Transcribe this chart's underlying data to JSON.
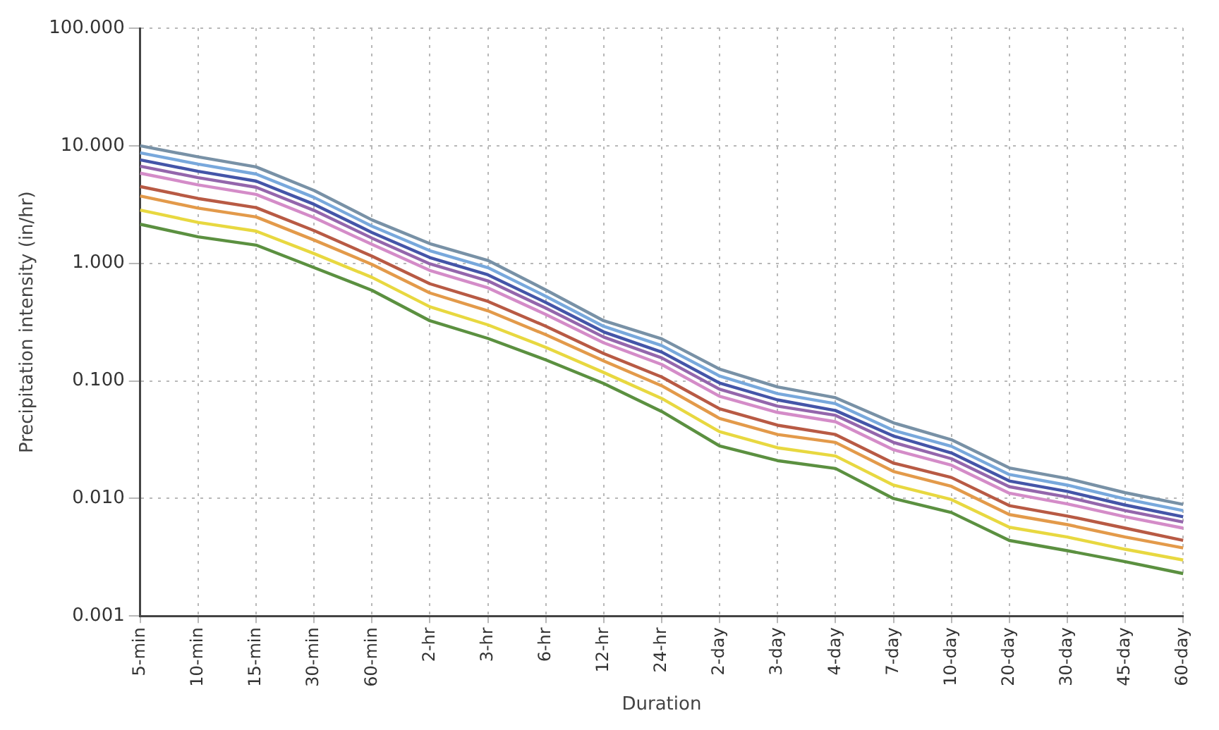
{
  "chart_data": {
    "type": "line",
    "xlabel": "Duration",
    "ylabel": "Precipitation intensity (in/hr)",
    "log": "y",
    "grid": true,
    "marker": "none",
    "line_style": "solid",
    "categories": [
      "5-min",
      "10-min",
      "15-min",
      "30-min",
      "60-min",
      "2-hr",
      "3-hr",
      "6-hr",
      "12-hr",
      "24-hr",
      "2-day",
      "3-day",
      "4-day",
      "7-day",
      "10-day",
      "20-day",
      "30-day",
      "45-day",
      "60-day"
    ],
    "ylim": [
      0.001,
      100
    ],
    "yticks": [
      {
        "value": 0.001,
        "label": "0.001"
      },
      {
        "value": 0.01,
        "label": "0.010"
      },
      {
        "value": 0.1,
        "label": "0.100"
      },
      {
        "value": 1,
        "label": "1.000"
      },
      {
        "value": 10,
        "label": "10.000"
      },
      {
        "value": 100,
        "label": "100.000"
      }
    ],
    "series": [
      {
        "color": "#5b9040",
        "values": [
          2.15,
          1.68,
          1.43,
          0.92,
          0.59,
          0.325,
          0.23,
          0.151,
          0.095,
          0.055,
          0.028,
          0.021,
          0.018,
          0.01,
          0.0076,
          0.0044,
          0.0036,
          0.0029,
          0.0023
        ]
      },
      {
        "color": "#e8d840",
        "values": [
          2.84,
          2.23,
          1.88,
          1.21,
          0.76,
          0.427,
          0.3,
          0.193,
          0.118,
          0.071,
          0.037,
          0.027,
          0.023,
          0.013,
          0.0098,
          0.0057,
          0.0047,
          0.0037,
          0.003
        ]
      },
      {
        "color": "#e39a4a",
        "values": [
          3.74,
          2.95,
          2.48,
          1.58,
          0.98,
          0.56,
          0.395,
          0.247,
          0.148,
          0.091,
          0.048,
          0.035,
          0.03,
          0.017,
          0.0127,
          0.0073,
          0.006,
          0.0047,
          0.0038
        ]
      },
      {
        "color": "#b85a44",
        "values": [
          4.5,
          3.56,
          2.98,
          1.9,
          1.15,
          0.67,
          0.475,
          0.292,
          0.171,
          0.108,
          0.058,
          0.042,
          0.035,
          0.02,
          0.0151,
          0.0087,
          0.0071,
          0.0056,
          0.0044
        ]
      },
      {
        "color": "#d48cc8",
        "values": [
          5.85,
          4.65,
          3.86,
          2.45,
          1.45,
          0.87,
          0.62,
          0.368,
          0.211,
          0.138,
          0.074,
          0.054,
          0.045,
          0.026,
          0.0192,
          0.0111,
          0.009,
          0.007,
          0.0056
        ]
      },
      {
        "color": "#9466ac",
        "values": [
          6.71,
          5.35,
          4.44,
          2.82,
          1.64,
          0.99,
          0.71,
          0.416,
          0.236,
          0.157,
          0.085,
          0.061,
          0.051,
          0.03,
          0.0218,
          0.0126,
          0.0103,
          0.0079,
          0.0063
        ]
      },
      {
        "color": "#4455a8",
        "values": [
          7.59,
          6.07,
          5.01,
          3.18,
          1.83,
          1.12,
          0.8,
          0.465,
          0.261,
          0.176,
          0.096,
          0.069,
          0.056,
          0.034,
          0.0244,
          0.0141,
          0.0115,
          0.0088,
          0.007
        ]
      },
      {
        "color": "#78a8dc",
        "values": [
          8.71,
          6.98,
          5.75,
          3.64,
          2.07,
          1.28,
          0.92,
          0.525,
          0.291,
          0.2,
          0.11,
          0.078,
          0.064,
          0.038,
          0.0278,
          0.016,
          0.013,
          0.0099,
          0.0079
        ]
      },
      {
        "color": "#7891a6",
        "values": [
          10.0,
          8.04,
          6.61,
          4.17,
          2.34,
          1.47,
          1.06,
          0.594,
          0.325,
          0.228,
          0.126,
          0.089,
          0.072,
          0.044,
          0.0316,
          0.0182,
          0.0148,
          0.0112,
          0.0089
        ]
      }
    ]
  }
}
